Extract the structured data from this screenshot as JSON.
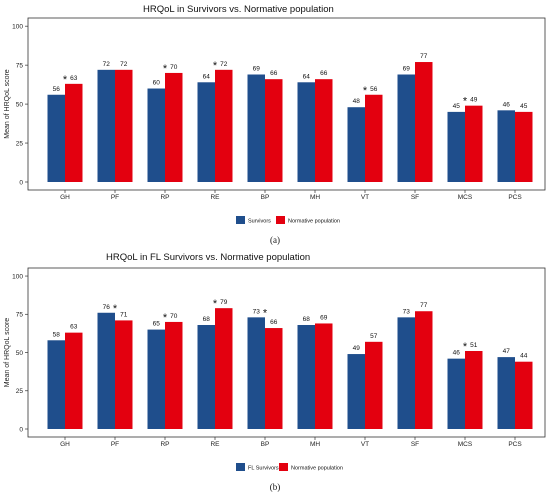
{
  "colors": {
    "survivors": "#1f4e8c",
    "normative": "#e3000f"
  },
  "chart_data": [
    {
      "type": "bar",
      "panel": "(a)",
      "title": "HRQoL in Survivors vs. Normative population",
      "xlabel": "",
      "ylabel": "Mean of HRQoL score",
      "ylim": [
        0,
        100
      ],
      "yticks": [
        0,
        25,
        50,
        75,
        100
      ],
      "grid": false,
      "legend_position": "bottom",
      "categories": [
        "GH",
        "PF",
        "RP",
        "RE",
        "BP",
        "MH",
        "VT",
        "SF",
        "MCS",
        "PCS"
      ],
      "series": [
        {
          "name": "Survivors",
          "color": "#1f4e8c",
          "values": [
            56,
            72,
            60,
            64,
            69,
            64,
            48,
            69,
            45,
            46
          ]
        },
        {
          "name": "Normative population",
          "color": "#e3000f",
          "values": [
            63,
            72,
            70,
            72,
            66,
            66,
            56,
            77,
            49,
            45
          ]
        }
      ],
      "significant": [
        "GH",
        "RP",
        "RE",
        "VT",
        "MCS"
      ],
      "significance_marker": "*"
    },
    {
      "type": "bar",
      "panel": "(b)",
      "title": "HRQoL in FL Survivors vs. Normative population",
      "xlabel": "",
      "ylabel": "Mean of HRQoL score",
      "ylim": [
        0,
        100
      ],
      "yticks": [
        0,
        25,
        50,
        75,
        100
      ],
      "grid": false,
      "legend_position": "bottom",
      "categories": [
        "GH",
        "PF",
        "RP",
        "RE",
        "BP",
        "MH",
        "VT",
        "SF",
        "MCS",
        "PCS"
      ],
      "series": [
        {
          "name": "FL Survivors",
          "color": "#1f4e8c",
          "values": [
            58,
            76,
            65,
            68,
            73,
            68,
            49,
            73,
            46,
            47
          ]
        },
        {
          "name": "Normative population",
          "color": "#e3000f",
          "values": [
            63,
            71,
            70,
            79,
            66,
            69,
            57,
            77,
            51,
            44
          ]
        }
      ],
      "significant": [
        "PF",
        "RP",
        "RE",
        "BP",
        "MCS"
      ],
      "significance_marker": "*"
    }
  ]
}
